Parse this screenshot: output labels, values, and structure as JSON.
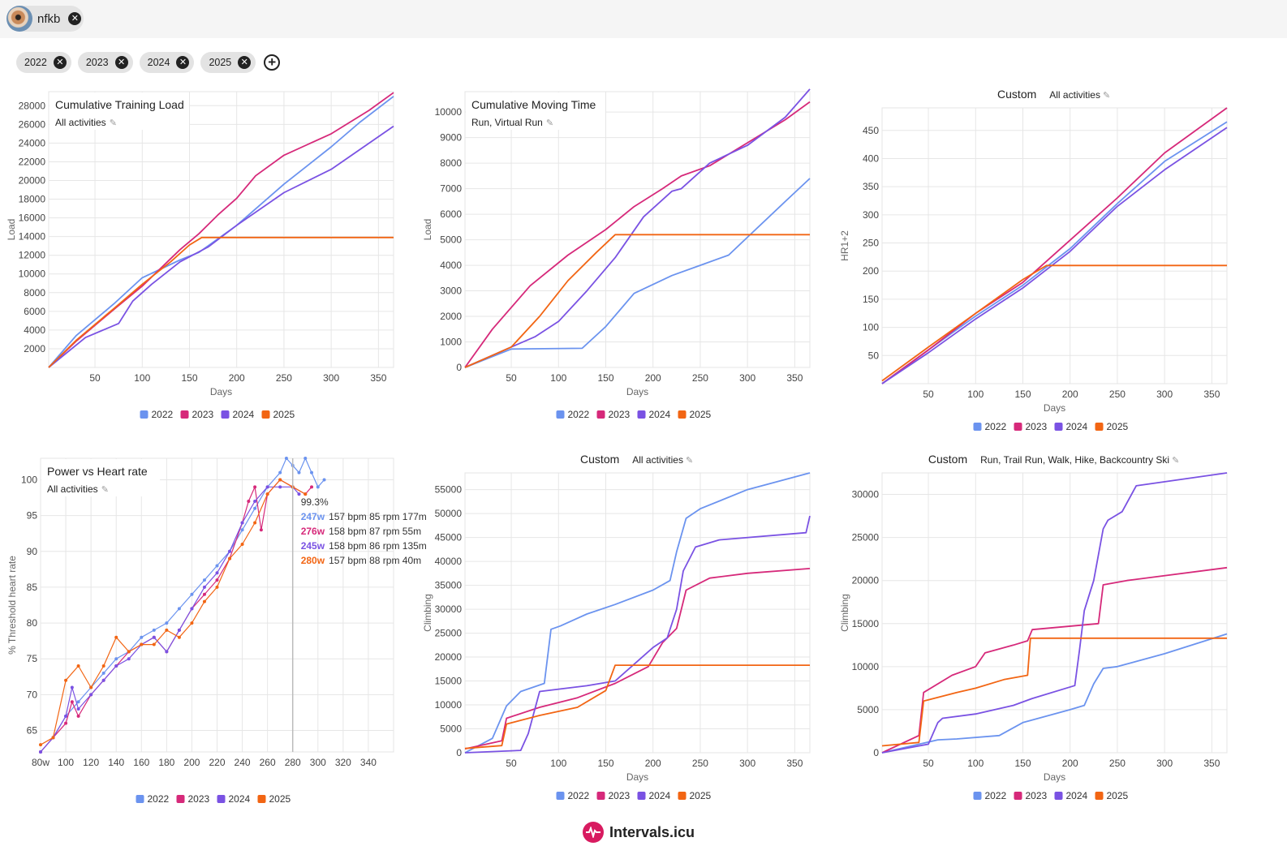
{
  "header": {
    "user": {
      "name": "nfkb",
      "avatar_icon": "avatar-photo",
      "remove_icon": "close-circle-icon"
    }
  },
  "filters": {
    "years": [
      "2022",
      "2023",
      "2024",
      "2025"
    ],
    "remove_icon": "close-circle-icon",
    "add_icon": "plus-circle-icon"
  },
  "series_colors": {
    "2022": "#6b93ef",
    "2023": "#d6297a",
    "2024": "#7a52e3",
    "2025": "#f26513"
  },
  "chart_data": [
    {
      "id": "c1",
      "type": "line",
      "title": "Cumulative Training Load",
      "subtitle": "All activities",
      "title_style": "boxed",
      "xlabel": "Days",
      "ylabel": "Load",
      "xlim": [
        1,
        366
      ],
      "ylim": [
        0,
        29500
      ],
      "xticks": [
        "50",
        "100",
        "150",
        "200",
        "250",
        "300",
        "350"
      ],
      "yticks": [
        "2000",
        "4000",
        "6000",
        "8000",
        "10000",
        "12000",
        "14000",
        "16000",
        "18000",
        "20000",
        "22000",
        "24000",
        "26000",
        "28000"
      ],
      "series": [
        {
          "name": "2022",
          "x": [
            1,
            30,
            70,
            100,
            140,
            160,
            200,
            250,
            300,
            330,
            366
          ],
          "y": [
            0,
            3400,
            6800,
            9600,
            11500,
            12300,
            15200,
            19600,
            23600,
            26200,
            29000
          ]
        },
        {
          "name": "2023",
          "x": [
            1,
            30,
            70,
            100,
            140,
            160,
            180,
            200,
            220,
            250,
            300,
            340,
            366
          ],
          "y": [
            0,
            2800,
            6200,
            8700,
            12600,
            14300,
            16300,
            18100,
            20500,
            22700,
            25000,
            27500,
            29400
          ]
        },
        {
          "name": "2024",
          "x": [
            1,
            40,
            75,
            90,
            110,
            140,
            170,
            200,
            250,
            300,
            366
          ],
          "y": [
            0,
            3200,
            4700,
            7100,
            8900,
            11300,
            12900,
            15200,
            18700,
            21200,
            25800
          ]
        },
        {
          "name": "2025",
          "x": [
            1,
            30,
            70,
            100,
            130,
            150,
            163,
            366
          ],
          "y": [
            0,
            2900,
            6300,
            8900,
            11300,
            13100,
            13900,
            13900
          ]
        }
      ]
    },
    {
      "id": "c2",
      "type": "line",
      "title": "Cumulative Moving Time",
      "subtitle": "Run, Virtual Run",
      "title_style": "boxed",
      "xlabel": "Days",
      "ylabel": "Load",
      "xlim": [
        1,
        366
      ],
      "ylim": [
        0,
        10800
      ],
      "xticks": [
        "50",
        "100",
        "150",
        "200",
        "250",
        "300",
        "350"
      ],
      "yticks": [
        "0",
        "1000",
        "2000",
        "3000",
        "4000",
        "5000",
        "6000",
        "7000",
        "8000",
        "9000",
        "10000"
      ],
      "series": [
        {
          "name": "2022",
          "x": [
            1,
            50,
            125,
            150,
            180,
            220,
            250,
            280,
            300,
            340,
            366
          ],
          "y": [
            0,
            720,
            750,
            1600,
            2900,
            3600,
            4000,
            4400,
            5100,
            6500,
            7400
          ]
        },
        {
          "name": "2023",
          "x": [
            1,
            30,
            70,
            110,
            150,
            180,
            210,
            230,
            260,
            300,
            340,
            366
          ],
          "y": [
            0,
            1500,
            3200,
            4400,
            5400,
            6300,
            7000,
            7500,
            7900,
            8800,
            9700,
            10400
          ]
        },
        {
          "name": "2024",
          "x": [
            1,
            50,
            75,
            100,
            130,
            160,
            190,
            220,
            230,
            260,
            300,
            340,
            366
          ],
          "y": [
            0,
            800,
            1200,
            1800,
            3000,
            4300,
            5900,
            6900,
            7000,
            8000,
            8700,
            9800,
            10900
          ]
        },
        {
          "name": "2025",
          "x": [
            1,
            50,
            80,
            110,
            140,
            160,
            366
          ],
          "y": [
            0,
            800,
            2000,
            3400,
            4500,
            5200,
            5200
          ]
        }
      ]
    },
    {
      "id": "c3",
      "type": "line",
      "title": "Custom",
      "subtitle": "All activities",
      "title_style": "inline",
      "xlabel": "Days",
      "ylabel": "HR1+2",
      "xlim": [
        1,
        366
      ],
      "ylim": [
        0,
        490
      ],
      "xticks": [
        "50",
        "100",
        "150",
        "200",
        "250",
        "300",
        "350"
      ],
      "yticks": [
        "50",
        "100",
        "150",
        "200",
        "250",
        "300",
        "350",
        "400",
        "450"
      ],
      "series": [
        {
          "name": "2022",
          "x": [
            1,
            50,
            100,
            150,
            200,
            250,
            300,
            366
          ],
          "y": [
            0,
            60,
            120,
            175,
            240,
            320,
            395,
            465
          ]
        },
        {
          "name": "2023",
          "x": [
            1,
            50,
            100,
            150,
            200,
            250,
            300,
            366
          ],
          "y": [
            0,
            60,
            125,
            180,
            255,
            330,
            410,
            490
          ]
        },
        {
          "name": "2024",
          "x": [
            1,
            50,
            100,
            150,
            200,
            250,
            300,
            366
          ],
          "y": [
            0,
            55,
            115,
            170,
            235,
            315,
            380,
            455
          ]
        },
        {
          "name": "2025",
          "x": [
            1,
            50,
            100,
            150,
            175,
            366
          ],
          "y": [
            5,
            65,
            125,
            185,
            210,
            210
          ]
        }
      ]
    },
    {
      "id": "c4",
      "type": "line",
      "title": "Power vs Heart rate",
      "subtitle": "All activities",
      "title_style": "boxed",
      "xlabel": "",
      "ylabel": "% Threshold heart rate",
      "xlim": [
        80,
        360
      ],
      "ylim": [
        62,
        103
      ],
      "xticks": [
        "80w",
        "100",
        "120",
        "140",
        "160",
        "180",
        "200",
        "220",
        "240",
        "260",
        "280",
        "300",
        "320",
        "340"
      ],
      "yticks": [
        "65",
        "70",
        "75",
        "80",
        "85",
        "90",
        "95",
        "100"
      ],
      "markers": true,
      "cursor": {
        "x": 280
      },
      "tooltip": {
        "header": "99.3%",
        "rows": [
          {
            "series": "2022",
            "power": "247w",
            "detail": "157 bpm 85 rpm 177m"
          },
          {
            "series": "2023",
            "power": "276w",
            "detail": "158 bpm 87 rpm 55m"
          },
          {
            "series": "2024",
            "power": "245w",
            "detail": "158 bpm 86 rpm 135m"
          },
          {
            "series": "2025",
            "power": "280w",
            "detail": "157 bpm 88 rpm 40m"
          }
        ]
      },
      "series": [
        {
          "name": "2022",
          "x": [
            80,
            90,
            100,
            110,
            120,
            130,
            140,
            150,
            160,
            170,
            180,
            190,
            200,
            210,
            220,
            230,
            240,
            250,
            260,
            270,
            275,
            280,
            285,
            290,
            295,
            300,
            305
          ],
          "y": [
            62,
            64,
            67,
            69,
            71,
            73,
            75,
            76,
            78,
            79,
            80,
            82,
            84,
            86,
            88,
            90,
            93,
            96,
            99,
            101,
            103,
            102,
            101,
            103,
            101,
            99,
            100
          ]
        },
        {
          "name": "2023",
          "x": [
            80,
            90,
            100,
            105,
            110,
            120,
            130,
            140,
            150,
            160,
            170,
            180,
            190,
            200,
            210,
            220,
            230,
            240,
            245,
            250,
            255,
            260,
            270,
            280,
            290,
            295
          ],
          "y": [
            62,
            64,
            66,
            69,
            67,
            70,
            72,
            74,
            76,
            77,
            78,
            76,
            79,
            82,
            84,
            86,
            89,
            94,
            97,
            99,
            93,
            98,
            100,
            99,
            98,
            99
          ]
        },
        {
          "name": "2024",
          "x": [
            80,
            90,
            100,
            105,
            110,
            120,
            130,
            140,
            150,
            160,
            170,
            180,
            190,
            200,
            210,
            220,
            230,
            240,
            250,
            260,
            270,
            280,
            285
          ],
          "y": [
            62,
            64,
            67,
            71,
            68,
            70,
            72,
            74,
            75,
            77,
            78,
            76,
            79,
            82,
            85,
            87,
            90,
            94,
            97,
            99,
            99,
            99,
            98
          ]
        },
        {
          "name": "2025",
          "x": [
            80,
            90,
            100,
            110,
            120,
            130,
            140,
            150,
            160,
            170,
            180,
            190,
            200,
            210,
            220,
            230,
            240,
            250,
            260,
            270,
            280,
            290
          ],
          "y": [
            63,
            64,
            72,
            74,
            71,
            74,
            78,
            76,
            77,
            77,
            79,
            78,
            80,
            83,
            85,
            89,
            91,
            94,
            98,
            100,
            99,
            98
          ]
        }
      ]
    },
    {
      "id": "c5",
      "type": "line",
      "title": "Custom",
      "subtitle": "All activities",
      "title_style": "inline",
      "xlabel": "Days",
      "ylabel": "Climbing",
      "xlim": [
        1,
        366
      ],
      "ylim": [
        0,
        58500
      ],
      "xticks": [
        "50",
        "100",
        "150",
        "200",
        "250",
        "300",
        "350"
      ],
      "yticks": [
        "0",
        "5000",
        "10000",
        "15000",
        "20000",
        "25000",
        "30000",
        "35000",
        "40000",
        "45000",
        "50000",
        "55000"
      ],
      "series": [
        {
          "name": "2022",
          "x": [
            1,
            30,
            45,
            60,
            85,
            92,
            102,
            130,
            160,
            200,
            218,
            225,
            235,
            250,
            300,
            366
          ],
          "y": [
            0,
            3000,
            9800,
            12800,
            14500,
            25800,
            26500,
            29000,
            31000,
            34000,
            36000,
            42000,
            49000,
            51000,
            55000,
            58500
          ]
        },
        {
          "name": "2023",
          "x": [
            1,
            40,
            45,
            80,
            120,
            160,
            195,
            210,
            225,
            235,
            260,
            300,
            366
          ],
          "y": [
            800,
            2500,
            7200,
            9500,
            11500,
            14500,
            18000,
            23000,
            26000,
            34000,
            36500,
            37500,
            38500
          ]
        },
        {
          "name": "2024",
          "x": [
            1,
            60,
            68,
            80,
            130,
            160,
            200,
            215,
            225,
            232,
            245,
            270,
            362,
            366
          ],
          "y": [
            0,
            500,
            4000,
            12800,
            14000,
            15000,
            22000,
            24000,
            30000,
            38000,
            43000,
            44500,
            46000,
            49500
          ]
        },
        {
          "name": "2025",
          "x": [
            1,
            40,
            45,
            80,
            120,
            150,
            160,
            366
          ],
          "y": [
            900,
            1500,
            6000,
            7800,
            9500,
            13000,
            18300,
            18300
          ]
        }
      ]
    },
    {
      "id": "c6",
      "type": "line",
      "title": "Custom",
      "subtitle": "Run, Trail Run, Walk, Hike, Backcountry Ski",
      "title_style": "inline",
      "xlabel": "Days",
      "ylabel": "Climbing",
      "xlim": [
        1,
        366
      ],
      "ylim": [
        0,
        32500
      ],
      "xticks": [
        "50",
        "100",
        "150",
        "200",
        "250",
        "300",
        "350"
      ],
      "yticks": [
        "0",
        "5000",
        "10000",
        "15000",
        "20000",
        "25000",
        "30000"
      ],
      "series": [
        {
          "name": "2022",
          "x": [
            1,
            60,
            80,
            125,
            150,
            200,
            215,
            225,
            235,
            250,
            300,
            366
          ],
          "y": [
            0,
            1500,
            1600,
            2000,
            3500,
            5000,
            5500,
            8000,
            9800,
            10000,
            11500,
            13800
          ]
        },
        {
          "name": "2023",
          "x": [
            1,
            40,
            45,
            75,
            100,
            110,
            140,
            155,
            160,
            230,
            235,
            260,
            366
          ],
          "y": [
            0,
            2000,
            7000,
            9000,
            10000,
            11600,
            12500,
            13000,
            14300,
            15000,
            19500,
            20000,
            21500
          ]
        },
        {
          "name": "2024",
          "x": [
            1,
            50,
            60,
            65,
            100,
            140,
            160,
            205,
            210,
            215,
            225,
            235,
            240,
            255,
            270,
            366
          ],
          "y": [
            0,
            1000,
            3500,
            4000,
            4500,
            5500,
            6300,
            7800,
            12000,
            16500,
            20000,
            26000,
            27000,
            28000,
            31000,
            32500
          ]
        },
        {
          "name": "2025",
          "x": [
            1,
            40,
            45,
            80,
            100,
            130,
            155,
            158,
            366
          ],
          "y": [
            800,
            1200,
            6000,
            7000,
            7500,
            8500,
            9000,
            13300,
            13300
          ]
        }
      ]
    }
  ],
  "footer": {
    "brand": "Intervals.icu",
    "logo_icon": "heartbeat-logo-icon"
  }
}
